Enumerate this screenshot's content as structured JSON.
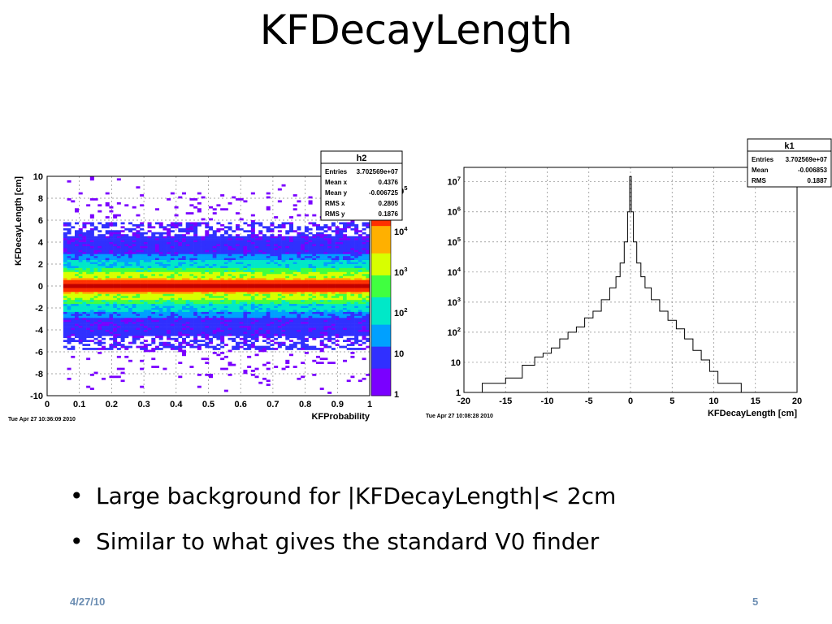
{
  "slide": {
    "title": "KFDecayLength",
    "bullets": [
      "Large background for |KFDecayLength|< 2cm",
      "Similar to what gives the standard V0 finder"
    ],
    "footer_date": "4/27/10",
    "page_number": "5"
  },
  "chart_data": [
    {
      "type": "heatmap",
      "title": "h2",
      "xlabel": "KFProbability",
      "ylabel": "KFDecayLength [cm]",
      "xlim": [
        0,
        1
      ],
      "ylim": [
        -10,
        10
      ],
      "x_ticks": [
        "0",
        "0.1",
        "0.2",
        "0.3",
        "0.4",
        "0.5",
        "0.6",
        "0.7",
        "0.8",
        "0.9",
        "1"
      ],
      "y_ticks": [
        "-10",
        "-8",
        "-6",
        "-4",
        "-2",
        "0",
        "2",
        "4",
        "6",
        "8",
        "10"
      ],
      "z_scale": "log",
      "z_ticks": [
        "1",
        "10",
        "10^2",
        "10^3",
        "10^4",
        "10^5"
      ],
      "grid": true,
      "description_bands": [
        {
          "y_center": 0,
          "half_width": 0.3,
          "level": "peak"
        },
        {
          "y_center": 0,
          "half_width": 1.2,
          "level": "high"
        },
        {
          "y_center": 0,
          "half_width": 2.5,
          "level": "medium"
        },
        {
          "y_center": 0,
          "half_width": 5.0,
          "level": "low"
        }
      ],
      "stats": {
        "Entries": "3.702569e+07",
        "Mean x": "0.4376",
        "Mean y": "-0.006725",
        "RMS x": "0.2805",
        "RMS y": "0.1876"
      },
      "timestamp": "Tue Apr 27 10:36:09 2010"
    },
    {
      "type": "line",
      "title": "k1",
      "xlabel": "KFDecayLength [cm]",
      "ylabel": "",
      "xlim": [
        -20,
        20
      ],
      "ylim": [
        1,
        30000000
      ],
      "y_scale": "log",
      "x_ticks": [
        "-20",
        "-15",
        "-10",
        "-5",
        "0",
        "5",
        "10",
        "15",
        "20"
      ],
      "y_ticks": [
        "1",
        "10",
        "10^2",
        "10^3",
        "10^4",
        "10^5",
        "10^6",
        "10^7"
      ],
      "grid": true,
      "x": [
        -17.5,
        -16,
        -14,
        -12,
        -11,
        -10,
        -9,
        -8,
        -7,
        -6,
        -5,
        -4,
        -3,
        -2,
        -1.5,
        -1,
        -0.5,
        -0.2,
        0,
        0.2,
        0.5,
        1,
        1.5,
        2,
        3,
        4,
        5,
        6,
        7,
        8,
        9,
        10,
        11,
        13
      ],
      "series": [
        {
          "values": [
            2,
            2,
            3,
            8,
            15,
            20,
            30,
            60,
            100,
            150,
            300,
            500,
            1200,
            3000,
            7000,
            20000,
            100000,
            1000000,
            15000000,
            1000000,
            100000,
            20000,
            7000,
            3000,
            1200,
            500,
            250,
            130,
            60,
            25,
            12,
            5,
            2,
            2
          ]
        }
      ],
      "stats": {
        "Entries": "3.702569e+07",
        "Mean": "-0.006853",
        "RMS": "0.1887"
      },
      "timestamp": "Tue Apr 27 10:08:28 2010"
    }
  ]
}
